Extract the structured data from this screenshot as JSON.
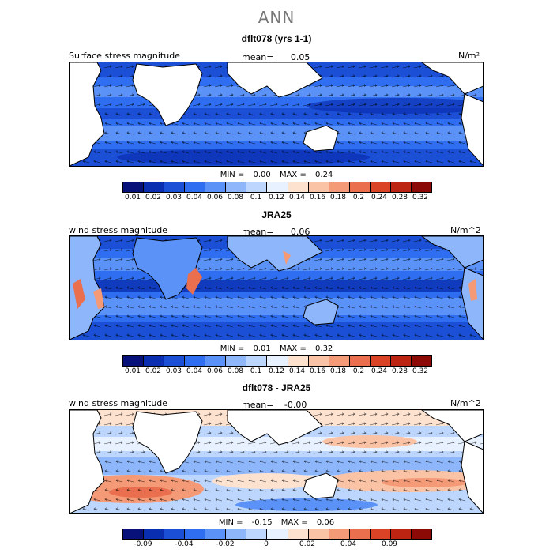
{
  "main_title": "ANN",
  "panels": [
    {
      "title": "dflt078 (yrs 1-1)",
      "left_label": "Surface stress magnitude",
      "mean_text": "mean=",
      "mean_value": "0.05",
      "units": "N/m²",
      "min_text": "MIN =",
      "min_value": "0.00",
      "max_text": "MAX =",
      "max_value": "0.24",
      "colorbar": {
        "colors": [
          "#08107a",
          "#0a2eb0",
          "#1a4fd6",
          "#2f6ef0",
          "#5b92f7",
          "#8db6fb",
          "#bcd6fd",
          "#e8f1ff",
          "#fde2d0",
          "#fbc3a6",
          "#f49a77",
          "#ea6f4e",
          "#db4327",
          "#bd2412",
          "#8b0a06"
        ],
        "tick_labels": [
          "0.01",
          "0.02",
          "0.03",
          "0.04",
          "0.06",
          "0.08",
          "0.1",
          "0.12",
          "0.14",
          "0.16",
          "0.18",
          "0.2",
          "0.24",
          "0.28",
          "0.32"
        ]
      }
    },
    {
      "title": "JRA25",
      "left_label": "wind stress magnitude",
      "mean_text": "mean=",
      "mean_value": "0.06",
      "units": "N/m^2",
      "min_text": "MIN =",
      "min_value": "0.01",
      "max_text": "MAX =",
      "max_value": "0.32",
      "colorbar": {
        "colors": [
          "#08107a",
          "#0a2eb0",
          "#1a4fd6",
          "#2f6ef0",
          "#5b92f7",
          "#8db6fb",
          "#bcd6fd",
          "#e8f1ff",
          "#fde2d0",
          "#fbc3a6",
          "#f49a77",
          "#ea6f4e",
          "#db4327",
          "#bd2412",
          "#8b0a06"
        ],
        "tick_labels": [
          "0.01",
          "0.02",
          "0.03",
          "0.04",
          "0.06",
          "0.08",
          "0.1",
          "0.12",
          "0.14",
          "0.16",
          "0.18",
          "0.2",
          "0.24",
          "0.28",
          "0.32"
        ]
      }
    },
    {
      "title": "dflt078 - JRA25",
      "left_label": "wind stress magnitude",
      "mean_text": "mean=",
      "mean_value": "-0.00",
      "units": "N/m^2",
      "min_text": "MIN =",
      "min_value": "-0.15",
      "max_text": "MAX =",
      "max_value": "0.06",
      "colorbar": {
        "colors": [
          "#08107a",
          "#0a2eb0",
          "#1a4fd6",
          "#2f6ef0",
          "#5b92f7",
          "#8db6fb",
          "#bcd6fd",
          "#e8f1ff",
          "#fde2d0",
          "#fbc3a6",
          "#f49a77",
          "#ea6f4e",
          "#db4327",
          "#bd2412",
          "#8b0a06"
        ],
        "tick_labels": [
          "-0.09",
          "-0.04",
          "-0.02",
          "0",
          "0.02",
          "0.04",
          "0.09"
        ]
      }
    }
  ]
}
